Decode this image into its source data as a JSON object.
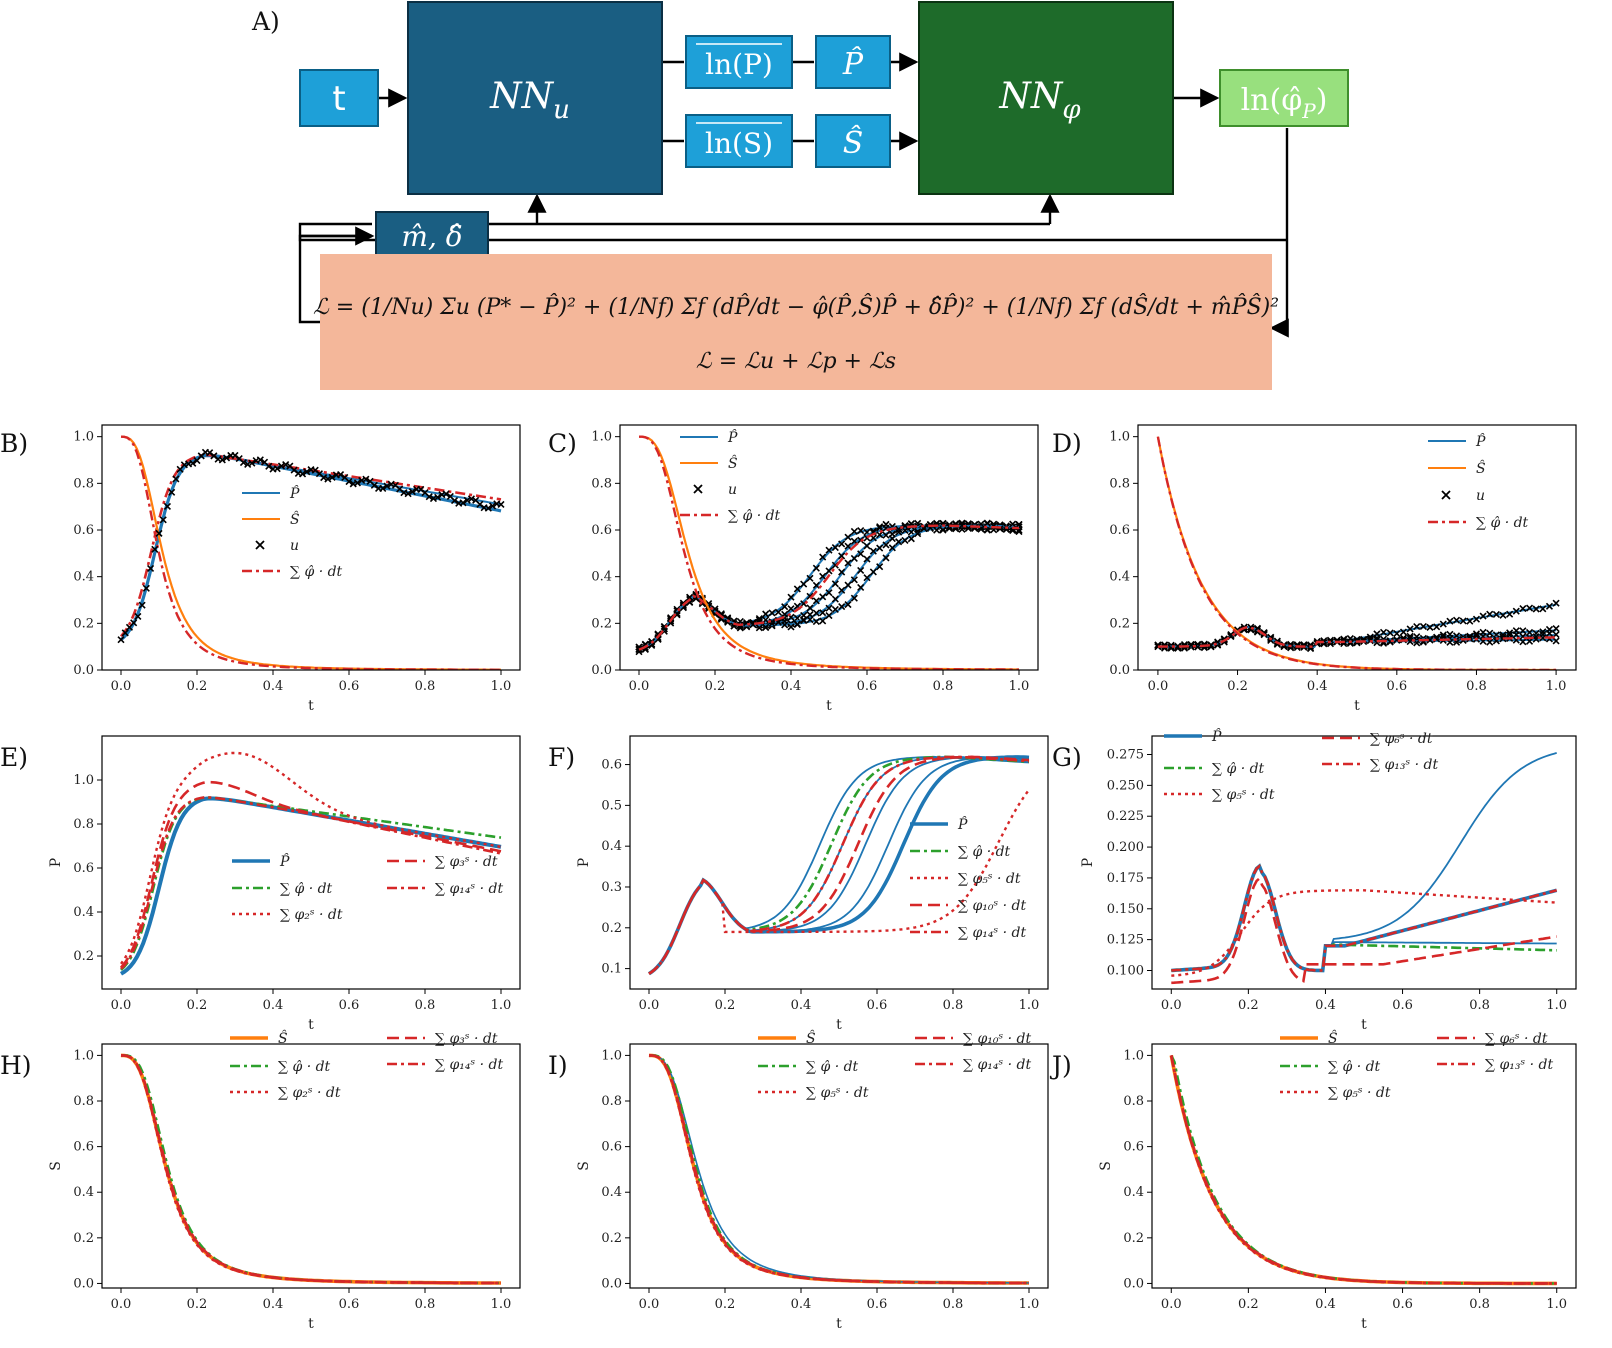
{
  "diagram": {
    "panel_label": "A)",
    "nodes": [
      {
        "id": "t",
        "label": "t"
      },
      {
        "id": "nnu",
        "label": "NN",
        "sub": "u"
      },
      {
        "id": "lnP",
        "label": "ln(P)"
      },
      {
        "id": "lnS",
        "label": "ln(S)"
      },
      {
        "id": "Phat",
        "label": "P̂"
      },
      {
        "id": "Shat",
        "label": "Ŝ"
      },
      {
        "id": "nnphi",
        "label": "NN",
        "sub": "φ"
      },
      {
        "id": "lnphi",
        "label": "ln(φ̂",
        "sub": "P",
        "tail": ")"
      },
      {
        "id": "md",
        "label": "m̂, δ̂"
      }
    ],
    "loss_line1": "ℒ = (1/Nu) Σu (P* − P̂)² + (1/Nf) Σf (dP̂/dt − φ̂(P̂,Ŝ)P̂ + δ̂P̂)² + (1/Nf) Σf (dŜ/dt + m̂P̂Ŝ)²",
    "loss_line2": "ℒ = ℒu + ℒp + ℒs",
    "colors": {
      "nnu": "#1a5e82",
      "nnphi": "#1e6b2a",
      "small": "#1ea0d8",
      "out": "#98e07e",
      "loss": "#f4b79a"
    }
  },
  "chart_data": [
    {
      "panel": "B)",
      "type": "line",
      "xlabel": "t",
      "ylabel": "",
      "xticks": [
        "0.0",
        "0.2",
        "0.4",
        "0.6",
        "0.8",
        "1.0"
      ],
      "yticks": [
        "0.0",
        "0.2",
        "0.4",
        "0.6",
        "0.8",
        "1.0"
      ],
      "xlim": [
        0,
        1
      ],
      "ylim": [
        0,
        1.05
      ],
      "legend": [
        "P̂",
        "Ŝ",
        "u",
        "∑ φ̂ · dt"
      ],
      "legend_pos": "center-right"
    },
    {
      "panel": "C)",
      "type": "line",
      "xlabel": "t",
      "ylabel": "",
      "xticks": [
        "0.0",
        "0.2",
        "0.4",
        "0.6",
        "0.8",
        "1.0"
      ],
      "yticks": [
        "0.0",
        "0.2",
        "0.4",
        "0.6",
        "0.8",
        "1.0"
      ],
      "xlim": [
        0,
        1
      ],
      "ylim": [
        0,
        1.05
      ],
      "legend": [
        "P̂",
        "Ŝ",
        "u",
        "∑ φ̂ · dt"
      ],
      "legend_pos": "upper-center"
    },
    {
      "panel": "D)",
      "type": "line",
      "xlabel": "t",
      "ylabel": "",
      "xticks": [
        "0.0",
        "0.2",
        "0.4",
        "0.6",
        "0.8",
        "1.0"
      ],
      "yticks": [
        "0.0",
        "0.2",
        "0.4",
        "0.6",
        "0.8",
        "1.0"
      ],
      "xlim": [
        0,
        1
      ],
      "ylim": [
        0,
        1.05
      ],
      "legend": [
        "P̂",
        "Ŝ",
        "u",
        "∑ φ̂ · dt"
      ],
      "legend_pos": "upper-right"
    },
    {
      "panel": "E)",
      "type": "line",
      "xlabel": "t",
      "ylabel": "P",
      "xticks": [
        "0.0",
        "0.2",
        "0.4",
        "0.6",
        "0.8",
        "1.0"
      ],
      "yticks": [
        "0.2",
        "0.4",
        "0.6",
        "0.8",
        "1.0"
      ],
      "xlim": [
        0,
        1
      ],
      "ylim": [
        0.05,
        1.2
      ],
      "legend": [
        "P̂",
        "∑ φ̂ · dt",
        "∑ φ₂ˢ · dt",
        "∑ φ₃ˢ · dt",
        "∑ φ₁₄ˢ · dt"
      ],
      "legend_pos": "lower-right"
    },
    {
      "panel": "F)",
      "type": "line",
      "xlabel": "t",
      "ylabel": "P",
      "xticks": [
        "0.0",
        "0.2",
        "0.4",
        "0.6",
        "0.8",
        "1.0"
      ],
      "yticks": [
        "0.1",
        "0.2",
        "0.3",
        "0.4",
        "0.5",
        "0.6"
      ],
      "xlim": [
        0,
        1
      ],
      "ylim": [
        0.05,
        0.67
      ],
      "legend": [
        "P̂",
        "∑ φ̂ · dt",
        "∑ φ₅ˢ · dt",
        "∑ φ₁₀ˢ · dt",
        "∑ φ₁₄ˢ · dt"
      ],
      "legend_pos": "lower-right"
    },
    {
      "panel": "G)",
      "type": "line",
      "xlabel": "t",
      "ylabel": "P",
      "xticks": [
        "0.0",
        "0.2",
        "0.4",
        "0.6",
        "0.8",
        "1.0"
      ],
      "yticks": [
        "0.100",
        "0.125",
        "0.150",
        "0.175",
        "0.200",
        "0.225",
        "0.250",
        "0.275"
      ],
      "xlim": [
        0,
        1
      ],
      "ylim": [
        0.085,
        0.29
      ],
      "legend": [
        "P̂",
        "∑ φ̂ · dt",
        "∑ φ₅ˢ · dt",
        "∑ φ₆ˢ · dt",
        "∑ φ₁₃ˢ · dt"
      ],
      "legend_pos": "upper-left"
    },
    {
      "panel": "H)",
      "type": "line",
      "xlabel": "t",
      "ylabel": "S",
      "xticks": [
        "0.0",
        "0.2",
        "0.4",
        "0.6",
        "0.8",
        "1.0"
      ],
      "yticks": [
        "0.0",
        "0.2",
        "0.4",
        "0.6",
        "0.8",
        "1.0"
      ],
      "xlim": [
        0,
        1
      ],
      "ylim": [
        -0.02,
        1.05
      ],
      "legend": [
        "Ŝ",
        "∑ φ̂ · dt",
        "∑ φ₂ˢ · dt",
        "∑ φ₃ˢ · dt",
        "∑ φ₁₄ˢ · dt"
      ],
      "legend_pos": "upper-right"
    },
    {
      "panel": "I)",
      "type": "line",
      "xlabel": "t",
      "ylabel": "S",
      "xticks": [
        "0.0",
        "0.2",
        "0.4",
        "0.6",
        "0.8",
        "1.0"
      ],
      "yticks": [
        "0.0",
        "0.2",
        "0.4",
        "0.6",
        "0.8",
        "1.0"
      ],
      "xlim": [
        0,
        1
      ],
      "ylim": [
        -0.02,
        1.05
      ],
      "legend": [
        "Ŝ",
        "∑ φ̂ · dt",
        "∑ φ₅ˢ · dt",
        "∑ φ₁₀ˢ · dt",
        "∑ φ₁₄ˢ · dt"
      ],
      "legend_pos": "upper-right"
    },
    {
      "panel": "J)",
      "type": "line",
      "xlabel": "t",
      "ylabel": "S",
      "xticks": [
        "0.0",
        "0.2",
        "0.4",
        "0.6",
        "0.8",
        "1.0"
      ],
      "yticks": [
        "0.0",
        "0.2",
        "0.4",
        "0.6",
        "0.8",
        "1.0"
      ],
      "xlim": [
        0,
        1
      ],
      "ylim": [
        -0.02,
        1.05
      ],
      "legend": [
        "Ŝ",
        "∑ φ̂ · dt",
        "∑ φ₅ˢ · dt",
        "∑ φ₆ˢ · dt",
        "∑ φ₁₃ˢ · dt"
      ],
      "legend_pos": "upper-right"
    }
  ]
}
